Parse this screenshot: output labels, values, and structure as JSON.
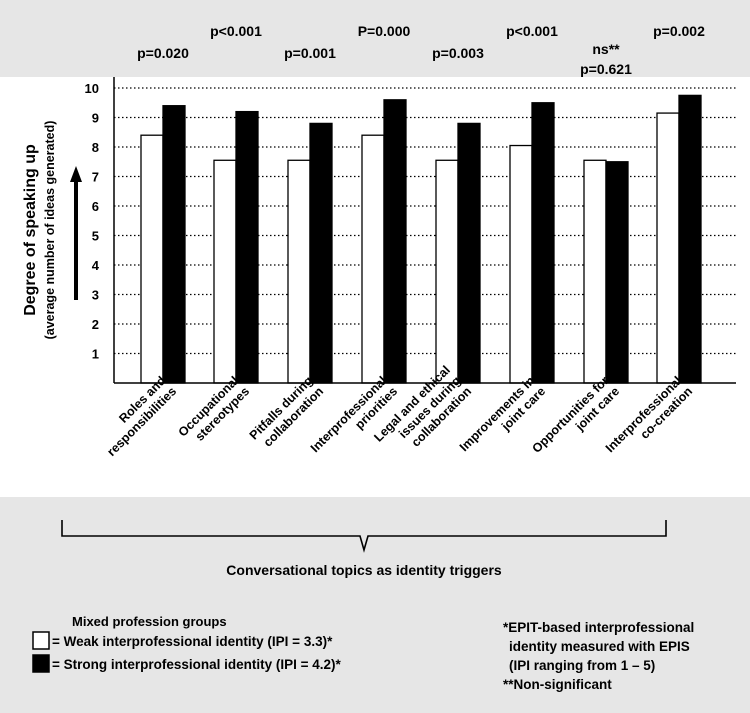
{
  "chart_data": {
    "type": "bar",
    "ylabel": "Degree of speaking up",
    "ylabel_sub": "(average number of  ideas generated)",
    "xlabel": "Conversational topics as identity triggers",
    "ylim": [
      0,
      10
    ],
    "yticks": [
      "1",
      "2",
      "3",
      "4",
      "5",
      "6",
      "7",
      "8",
      "9",
      "10"
    ],
    "grid": "dotted horizontal",
    "categories": [
      [
        "Roles and",
        "responsibilities"
      ],
      [
        "Occupational",
        "stereotypes"
      ],
      [
        "Pitfalls during",
        "collaboration"
      ],
      [
        "Interprofessional",
        "priorities"
      ],
      [
        "Legal and ethical",
        "issues during",
        "collaboration"
      ],
      [
        "Improvements in",
        "joint care"
      ],
      [
        "Opportunities for",
        "joint care"
      ],
      [
        "Interprofessional",
        "co-creation"
      ]
    ],
    "series": [
      {
        "name": "= Weak interprofessional identity (IPI = 3.3)*",
        "color": "#ffffff",
        "values": [
          8.4,
          7.55,
          7.55,
          8.4,
          7.55,
          8.05,
          7.55,
          9.15
        ]
      },
      {
        "name": "= Strong interprofessional identity (IPI = 4.2)*",
        "color": "#000000",
        "values": [
          9.4,
          9.2,
          8.8,
          9.6,
          8.8,
          9.5,
          7.5,
          9.75
        ]
      }
    ],
    "pvalues": [
      [
        "p=0.020"
      ],
      [
        "p<0.001"
      ],
      [
        "p=0.001"
      ],
      [
        "P=0.000"
      ],
      [
        "p=0.003"
      ],
      [
        "p<0.001"
      ],
      [
        "ns**",
        "p=0.621"
      ],
      [
        "p=0.002"
      ]
    ],
    "legend_title": "Mixed profession groups",
    "footnote": [
      "*EPIT-based interprofessional",
      "identity measured with EPIS",
      "(IPI ranging from 1 – 5)",
      "**Non-significant"
    ]
  }
}
